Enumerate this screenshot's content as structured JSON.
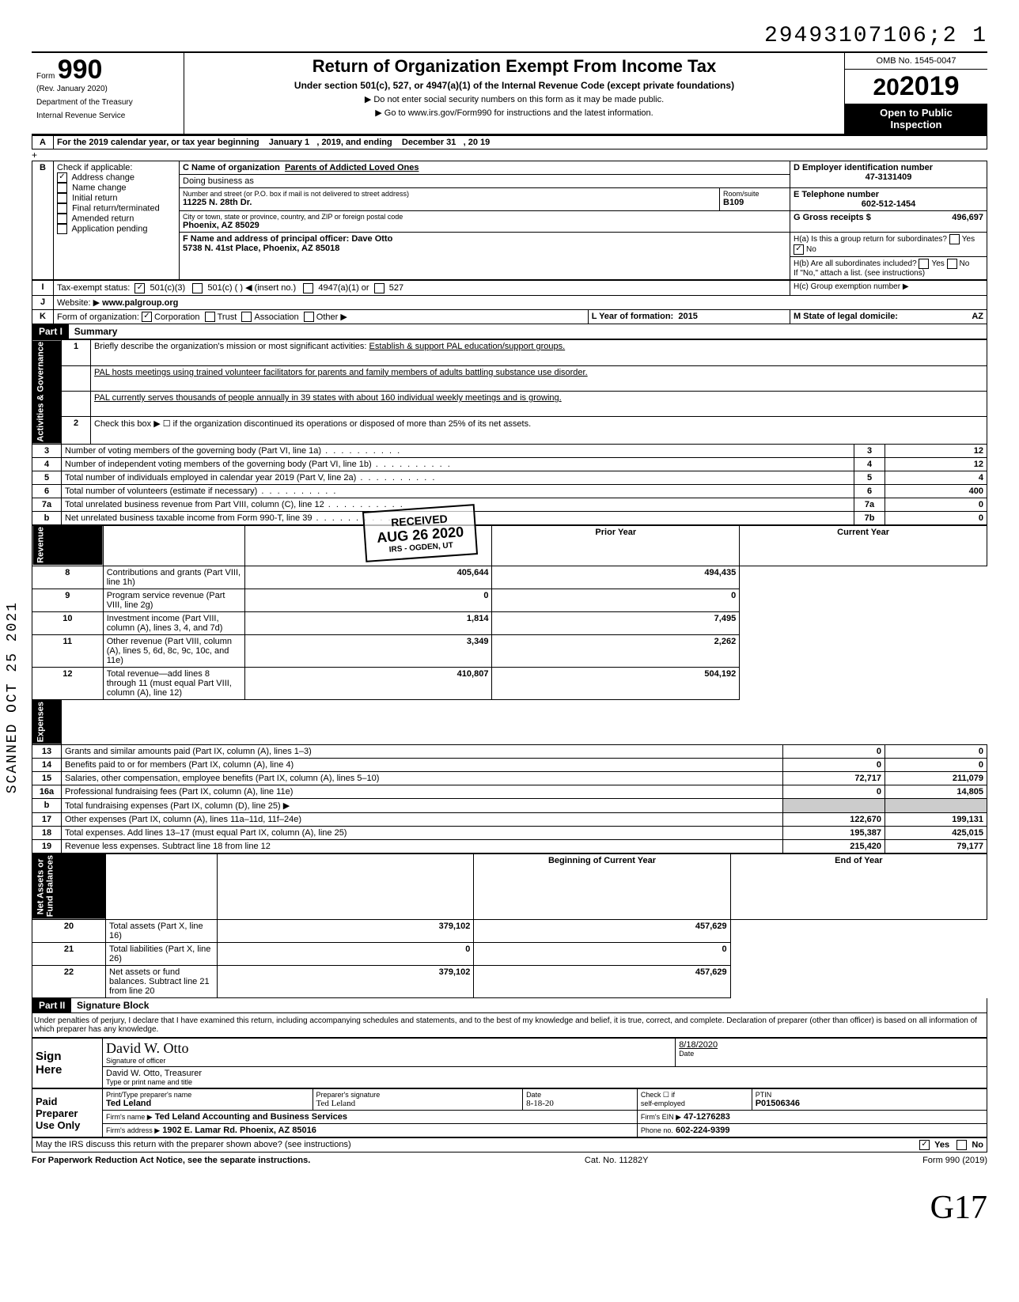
{
  "stamp_top": "29493107106;2  1",
  "scanned_side": "SCANNED OCT 25 2021",
  "initials_bottom": "G17",
  "header": {
    "form_word": "Form",
    "form_number": "990",
    "rev": "(Rev. January 2020)",
    "dept1": "Department of the Treasury",
    "dept2": "Internal Revenue Service",
    "title": "Return of Organization Exempt From Income Tax",
    "subtitle": "Under section 501(c), 527, or 4947(a)(1) of the Internal Revenue Code (except private foundations)",
    "warn": "▶ Do not enter social security numbers on this form as it may be made public.",
    "goto": "▶ Go to www.irs.gov/Form990 for instructions and the latest information.",
    "omb": "OMB No. 1545-0047",
    "year": "2019",
    "open1": "Open to Public",
    "open2": "Inspection"
  },
  "rowA": {
    "label": "A",
    "text1": "For the 2019 calendar year, or tax year beginning",
    "begin": "January 1",
    "mid": ", 2019, and ending",
    "end": "December 31",
    "yy": ", 20",
    "yy_val": "19"
  },
  "rowB": {
    "label": "B",
    "check_label": "Check if applicable:",
    "items": [
      {
        "label": "Address change",
        "checked": true
      },
      {
        "label": "Name change",
        "checked": false
      },
      {
        "label": "Initial return",
        "checked": false
      },
      {
        "label": "Final return/terminated",
        "checked": false
      },
      {
        "label": "Amended return",
        "checked": false
      },
      {
        "label": "Application pending",
        "checked": false
      }
    ]
  },
  "blockC": {
    "c_label": "C Name of organization",
    "c_val": "Parents of Addicted Loved Ones",
    "dba_label": "Doing business as",
    "dba_val": "",
    "addr_label": "Number and street (or P.O. box if mail is not delivered to street address)",
    "addr_val": "11225 N. 28th Dr.",
    "room_label": "Room/suite",
    "room_val": "B109",
    "city_label": "City or town, state or province, country, and ZIP or foreign postal code",
    "city_val": "Phoenix, AZ 85029",
    "f_label": "F Name and address of principal officer:",
    "f_name": "Dave Otto",
    "f_addr": "5738 N. 41st Place, Phoenix, AZ 85018"
  },
  "blockD": {
    "d_label": "D Employer identification number",
    "d_val": "47-3131409",
    "e_label": "E Telephone number",
    "e_val": "602-512-1454",
    "g_label": "G Gross receipts $",
    "g_val": "496,697",
    "ha_label": "H(a) Is this a group return for subordinates?",
    "ha_yes": "Yes",
    "ha_no": "No",
    "ha_checked": "No",
    "hb_label": "H(b) Are all subordinates included?",
    "hb_yes": "Yes",
    "hb_no": "No",
    "hb_note": "If \"No,\" attach a list. (see instructions)",
    "hc_label": "H(c) Group exemption number ▶",
    "hc_val": ""
  },
  "rowI": {
    "label": "I",
    "tax_label": "Tax-exempt status:",
    "c501c3": "501(c)(3)",
    "c501c3_checked": true,
    "c501c": "501(c) (",
    "insert": ") ◀ (insert no.)",
    "c4947": "4947(a)(1) or",
    "c527": "527"
  },
  "rowJ": {
    "label": "J",
    "text": "Website: ▶",
    "val": "www.palgroup.org"
  },
  "rowK": {
    "label": "K",
    "text": "Form of organization:",
    "opts": [
      {
        "label": "Corporation",
        "checked": true
      },
      {
        "label": "Trust",
        "checked": false
      },
      {
        "label": "Association",
        "checked": false
      },
      {
        "label": "Other ▶",
        "checked": false
      }
    ],
    "l_label": "L Year of formation:",
    "l_val": "2015",
    "m_label": "M State of legal domicile:",
    "m_val": "AZ"
  },
  "part1": {
    "label": "Part I",
    "title": "Summary"
  },
  "summary": {
    "line1_n": "1",
    "line1": "Briefly describe the organization's mission or most significant activities:",
    "line1_val": "Establish & support PAL education/support groups.",
    "line1b": "PAL hosts meetings using trained volunteer facilitators for parents and family members of adults battling substance use disorder.",
    "line1c": "PAL currently serves thousands of people annually in 39 states with about 160 individual weekly meetings and is growing.",
    "line2_n": "2",
    "line2": "Check this box ▶ ☐ if the organization discontinued its operations or disposed of more than 25% of its net assets.",
    "gov_rows": [
      {
        "n": "3",
        "label": "Number of voting members of the governing body (Part VI, line 1a)",
        "box": "3",
        "val": "12"
      },
      {
        "n": "4",
        "label": "Number of independent voting members of the governing body (Part VI, line 1b)",
        "box": "4",
        "val": "12"
      },
      {
        "n": "5",
        "label": "Total number of individuals employed in calendar year 2019 (Part V, line 2a)",
        "box": "5",
        "val": "4"
      },
      {
        "n": "6",
        "label": "Total number of volunteers (estimate if necessary)",
        "box": "6",
        "val": "400"
      },
      {
        "n": "7a",
        "label": "Total unrelated business revenue from Part VIII, column (C), line 12",
        "box": "7a",
        "val": "0"
      },
      {
        "n": "b",
        "label": "Net unrelated business taxable income from Form 990-T, line 39",
        "box": "7b",
        "val": "0"
      }
    ],
    "prior_label": "Prior Year",
    "cur_label": "Current Year",
    "rev_rows": [
      {
        "n": "8",
        "label": "Contributions and grants (Part VIII, line 1h)",
        "prior": "405,644",
        "cur": "494,435"
      },
      {
        "n": "9",
        "label": "Program service revenue (Part VIII, line 2g)",
        "prior": "0",
        "cur": "0"
      },
      {
        "n": "10",
        "label": "Investment income (Part VIII, column (A), lines 3, 4, and 7d)",
        "prior": "1,814",
        "cur": "7,495"
      },
      {
        "n": "11",
        "label": "Other revenue (Part VIII, column (A), lines 5, 6d, 8c, 9c, 10c, and 11e)",
        "prior": "3,349",
        "cur": "2,262"
      },
      {
        "n": "12",
        "label": "Total revenue—add lines 8 through 11 (must equal Part VIII, column (A), line 12)",
        "prior": "410,807",
        "cur": "504,192"
      }
    ],
    "exp_rows": [
      {
        "n": "13",
        "label": "Grants and similar amounts paid (Part IX, column (A), lines 1–3)",
        "prior": "0",
        "cur": "0"
      },
      {
        "n": "14",
        "label": "Benefits paid to or for members (Part IX, column (A), line 4)",
        "prior": "0",
        "cur": "0"
      },
      {
        "n": "15",
        "label": "Salaries, other compensation, employee benefits (Part IX, column (A), lines 5–10)",
        "prior": "72,717",
        "cur": "211,079"
      },
      {
        "n": "16a",
        "label": "Professional fundraising fees (Part IX, column (A), line 11e)",
        "prior": "0",
        "cur": "14,805"
      },
      {
        "n": "b",
        "label": "Total fundraising expenses (Part IX, column (D), line 25) ▶",
        "prior": "",
        "cur": "",
        "shaded": true
      },
      {
        "n": "17",
        "label": "Other expenses (Part IX, column (A), lines 11a–11d, 11f–24e)",
        "prior": "122,670",
        "cur": "199,131"
      },
      {
        "n": "18",
        "label": "Total expenses. Add lines 13–17 (must equal Part IX, column (A), line 25)",
        "prior": "195,387",
        "cur": "425,015"
      },
      {
        "n": "19",
        "label": "Revenue less expenses. Subtract line 18 from line 12",
        "prior": "215,420",
        "cur": "79,177"
      }
    ],
    "na_header_prior": "Beginning of Current Year",
    "na_header_cur": "End of Year",
    "na_rows": [
      {
        "n": "20",
        "label": "Total assets (Part X, line 16)",
        "prior": "379,102",
        "cur": "457,629"
      },
      {
        "n": "21",
        "label": "Total liabilities (Part X, line 26)",
        "prior": "0",
        "cur": "0"
      },
      {
        "n": "22",
        "label": "Net assets or fund balances. Subtract line 21 from line 20",
        "prior": "379,102",
        "cur": "457,629"
      }
    ],
    "side_gov": "Activities & Governance",
    "side_rev": "Revenue",
    "side_exp": "Expenses",
    "side_na": "Net Assets or\nFund Balances"
  },
  "part2": {
    "label": "Part II",
    "title": "Signature Block"
  },
  "sig": {
    "perjury": "Under penalties of perjury, I declare that I have examined this return, including accompanying schedules and statements, and to the best of my knowledge and belief, it is true, correct, and complete. Declaration of preparer (other than officer) is based on all information of which preparer has any knowledge.",
    "sign_here": "Sign\nHere",
    "sig_of_officer": "Signature of officer",
    "date_label": "Date",
    "sig_date": "8/18/2020",
    "officer_name": "David W. Otto, Treasurer",
    "type_name": "Type or print name and title",
    "paid": "Paid\nPreparer\nUse Only",
    "prep_name_label": "Print/Type preparer's name",
    "prep_name": "Ted Leland",
    "prep_sig_label": "Preparer's signature",
    "prep_date_label": "Date",
    "prep_date": "8-18-20",
    "check_if": "Check ☐ if\nself-employed",
    "ptin_label": "PTIN",
    "ptin": "P01506346",
    "firm_name_label": "Firm's name ▶",
    "firm_name": "Ted Leland Accounting and Business Services",
    "firm_ein_label": "Firm's EIN ▶",
    "firm_ein": "47-1276283",
    "firm_addr_label": "Firm's address ▶",
    "firm_addr": "1902 E. Lamar Rd. Phoenix, AZ 85016",
    "phone_label": "Phone no.",
    "phone": "602-224-9399",
    "discuss": "May the IRS discuss this return with the preparer shown above? (see instructions)",
    "discuss_yes": "Yes",
    "discuss_no": "No",
    "discuss_checked": "Yes"
  },
  "footer": {
    "pra": "For Paperwork Reduction Act Notice, see the separate instructions.",
    "cat": "Cat. No. 11282Y",
    "form": "Form 990 (2019)"
  },
  "received": {
    "line1": "RECEIVED",
    "line2": "AUG 26 2020",
    "line3": "IRS - OGDEN, UT"
  }
}
